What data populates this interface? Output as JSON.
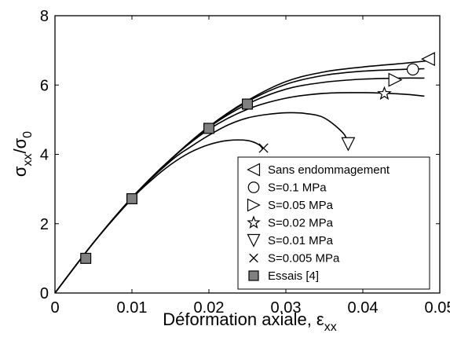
{
  "chart_data": {
    "type": "line",
    "title": "",
    "xlabel": {
      "main": "Déformation axiale, ε",
      "sub": "xx"
    },
    "ylabel": {
      "a": "σ",
      "a_sub": "xx",
      "slash": "/σ",
      "b_sub": "0"
    },
    "xlim": [
      0,
      0.05
    ],
    "ylim": [
      0,
      8
    ],
    "x_ticks": [
      "0",
      "0.01",
      "0.02",
      "0.03",
      "0.04",
      "0.05"
    ],
    "x_tick_values": [
      0,
      0.01,
      0.02,
      0.03,
      0.04,
      0.05
    ],
    "y_ticks": [
      "0",
      "2",
      "4",
      "6",
      "8"
    ],
    "y_tick_values": [
      0,
      2,
      4,
      6,
      8
    ],
    "grid": false,
    "legend_position": "bottom-right",
    "series": [
      {
        "name": "Sans endommagement",
        "marker": "triangle-left",
        "x": [
          0,
          0.005,
          0.01,
          0.015,
          0.02,
          0.025,
          0.03,
          0.035,
          0.04,
          0.045,
          0.0485
        ],
        "y": [
          0,
          1.45,
          2.75,
          3.85,
          4.8,
          5.55,
          6.1,
          6.38,
          6.52,
          6.62,
          6.7
        ],
        "marker_x": [
          0.0485
        ],
        "marker_y": [
          6.75
        ]
      },
      {
        "name": "S=0.1 MPa",
        "marker": "circle",
        "x": [
          0,
          0.005,
          0.01,
          0.015,
          0.02,
          0.025,
          0.03,
          0.035,
          0.04,
          0.045,
          0.048
        ],
        "y": [
          0,
          1.45,
          2.75,
          3.85,
          4.8,
          5.52,
          6.02,
          6.28,
          6.4,
          6.45,
          6.47
        ],
        "marker_x": [
          0.0465
        ],
        "marker_y": [
          6.45
        ]
      },
      {
        "name": "S=0.05 MPa",
        "marker": "triangle-right",
        "x": [
          0,
          0.005,
          0.01,
          0.015,
          0.02,
          0.025,
          0.03,
          0.035,
          0.04,
          0.045,
          0.048
        ],
        "y": [
          0,
          1.45,
          2.75,
          3.85,
          4.78,
          5.45,
          5.88,
          6.08,
          6.17,
          6.2,
          6.2
        ],
        "marker_x": [
          0.0442
        ],
        "marker_y": [
          6.15
        ]
      },
      {
        "name": "S=0.02 MPa",
        "marker": "star",
        "x": [
          0,
          0.005,
          0.01,
          0.015,
          0.02,
          0.025,
          0.03,
          0.035,
          0.04,
          0.045,
          0.048
        ],
        "y": [
          0,
          1.45,
          2.75,
          3.85,
          4.72,
          5.3,
          5.62,
          5.76,
          5.78,
          5.74,
          5.68
        ],
        "marker_x": [
          0.0428
        ],
        "marker_y": [
          5.75
        ]
      },
      {
        "name": "S=0.01 MPa",
        "marker": "triangle-down",
        "x": [
          0,
          0.005,
          0.01,
          0.015,
          0.0175,
          0.02,
          0.0225,
          0.025,
          0.0275,
          0.03,
          0.0325,
          0.035,
          0.0375,
          0.038
        ],
        "y": [
          0,
          1.45,
          2.75,
          3.8,
          4.2,
          4.55,
          4.85,
          5.05,
          5.15,
          5.2,
          5.18,
          5.05,
          4.6,
          4.3
        ],
        "marker_x": [
          0.0381
        ],
        "marker_y": [
          4.3
        ]
      },
      {
        "name": "S=0.005 MPa",
        "marker": "x",
        "x": [
          0,
          0.005,
          0.01,
          0.0125,
          0.015,
          0.0175,
          0.02,
          0.0225,
          0.025,
          0.0265,
          0.027
        ],
        "y": [
          0,
          1.45,
          2.72,
          3.25,
          3.7,
          4.05,
          4.28,
          4.4,
          4.4,
          4.28,
          4.15
        ],
        "marker_x": [
          0.0271
        ],
        "marker_y": [
          4.18
        ]
      }
    ],
    "experimental": {
      "name": "Essais [4]",
      "marker": "square",
      "color": "#808080",
      "x": [
        0.004,
        0.01,
        0.02,
        0.025
      ],
      "y": [
        1.0,
        2.72,
        4.75,
        5.45
      ]
    },
    "legend_labels": [
      "Sans endommagement",
      "S=0.1 MPa",
      "S=0.05 MPa",
      "S=0.02 MPa",
      "S=0.01 MPa",
      "S=0.005 MPa",
      "Essais [4]"
    ],
    "legend_markers": [
      "triangle-left",
      "circle",
      "triangle-right",
      "star",
      "triangle-down",
      "x",
      "square"
    ],
    "line_color": "#000000"
  }
}
